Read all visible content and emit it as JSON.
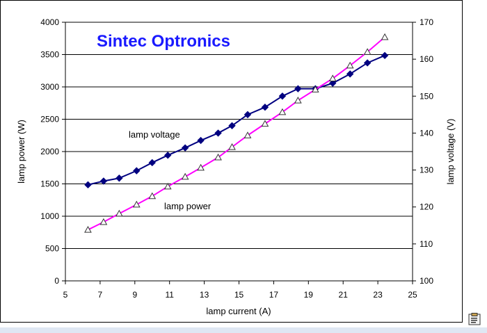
{
  "chart_data": {
    "type": "line",
    "title": "Sintec Optronics",
    "xlabel": "lamp current (A)",
    "ylabel_left": "lamp power (W)",
    "ylabel_right": "lamp voltage (V)",
    "xlim": [
      5,
      25
    ],
    "ylim_left": [
      0,
      4000
    ],
    "ylim_right": [
      100,
      170
    ],
    "xticks": [
      "5",
      "7",
      "9",
      "11",
      "13",
      "15",
      "17",
      "19",
      "21",
      "23",
      "25"
    ],
    "yticks_left": [
      "0",
      "500",
      "1000",
      "1500",
      "2000",
      "2500",
      "3000",
      "3500",
      "4000"
    ],
    "yticks_right": [
      "100",
      "110",
      "120",
      "130",
      "140",
      "150",
      "160",
      "170"
    ],
    "grid": "horizontal",
    "series": [
      {
        "name": "lamp voltage",
        "axis": "right",
        "color": "#000080",
        "marker": "diamond",
        "x": [
          6.3,
          7.2,
          8.1,
          9.1,
          10.0,
          10.9,
          11.9,
          12.8,
          13.8,
          14.6,
          15.5,
          16.5,
          17.5,
          18.4,
          19.4,
          20.4,
          21.4,
          22.4,
          23.4
        ],
        "y": [
          126,
          127,
          127.8,
          129.8,
          132,
          134,
          136,
          138,
          140,
          142,
          145,
          147,
          150,
          152,
          152,
          153.5,
          156,
          159,
          161
        ]
      },
      {
        "name": "lamp power",
        "axis": "left",
        "color": "#ff00ff",
        "marker": "triangle",
        "x": [
          6.3,
          7.2,
          8.1,
          9.1,
          10.0,
          10.9,
          11.9,
          12.8,
          13.8,
          14.6,
          15.5,
          16.5,
          17.5,
          18.4,
          19.4,
          20.4,
          21.4,
          22.4,
          23.4
        ],
        "y": [
          790,
          910,
          1040,
          1180,
          1310,
          1460,
          1610,
          1750,
          1910,
          2070,
          2250,
          2430,
          2610,
          2790,
          2960,
          3130,
          3330,
          3540,
          3770
        ]
      }
    ],
    "annotations": [
      {
        "text": "lamp voltage",
        "series": "lamp voltage"
      },
      {
        "text": "lamp power",
        "series": "lamp power"
      }
    ]
  }
}
